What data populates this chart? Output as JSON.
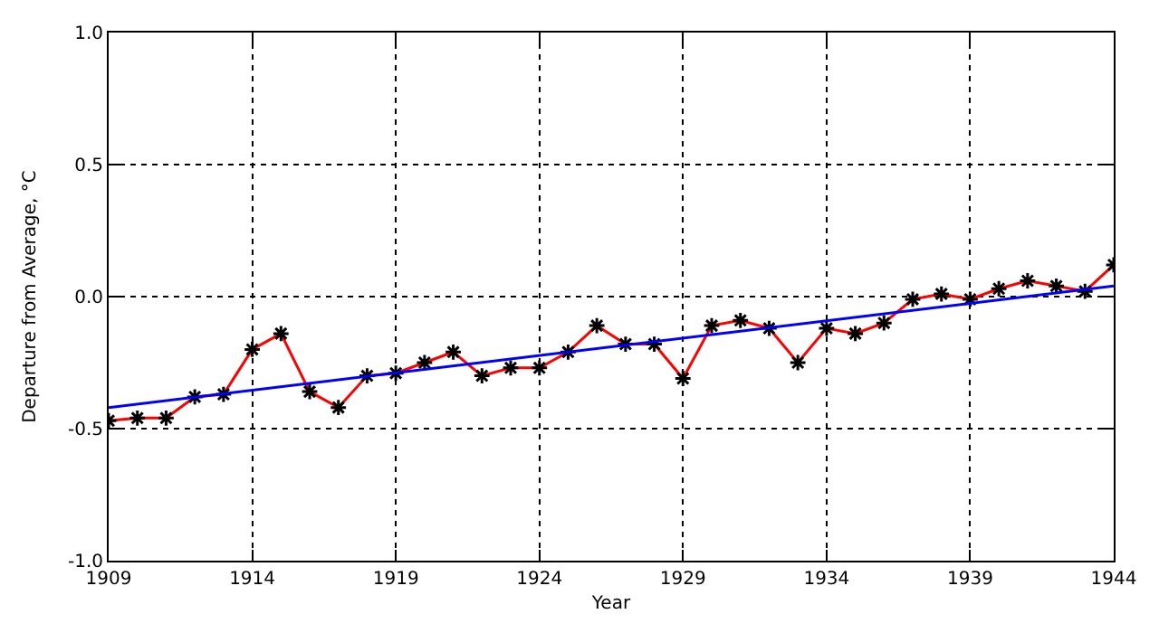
{
  "chart_data": {
    "type": "line",
    "xlabel": "Year",
    "ylabel": "Departure from Average, °C",
    "x": [
      1909,
      1910,
      1911,
      1912,
      1913,
      1914,
      1915,
      1916,
      1917,
      1918,
      1919,
      1920,
      1921,
      1922,
      1923,
      1924,
      1925,
      1926,
      1927,
      1928,
      1929,
      1930,
      1931,
      1932,
      1933,
      1934,
      1935,
      1936,
      1937,
      1938,
      1939,
      1940,
      1941,
      1942,
      1943,
      1944
    ],
    "series": [
      {
        "color": "#ff0000",
        "marker": "cross",
        "values": [
          -0.47,
          -0.46,
          -0.46,
          -0.38,
          -0.37,
          -0.2,
          -0.14,
          -0.36,
          -0.42,
          -0.3,
          -0.29,
          -0.25,
          -0.21,
          -0.3,
          -0.27,
          -0.27,
          -0.21,
          -0.11,
          -0.18,
          -0.18,
          -0.31,
          -0.11,
          -0.09,
          -0.12,
          -0.25,
          -0.12,
          -0.14,
          -0.1,
          -0.01,
          0.01,
          -0.01,
          0.03,
          0.06,
          0.04,
          0.02,
          0.12
        ]
      },
      {
        "color": "#0000ff",
        "marker": "none",
        "x": [
          1909,
          1944
        ],
        "values": [
          -0.42,
          0.04
        ]
      }
    ],
    "xlim": [
      1909,
      1944
    ],
    "xticks": [
      1909,
      1914,
      1919,
      1924,
      1929,
      1934,
      1939,
      1944
    ],
    "ylim": [
      -1.0,
      1.0
    ],
    "yticks": [
      {
        "value": -1.0,
        "label": "-1.0"
      },
      {
        "value": -0.5,
        "label": "-0.5"
      },
      {
        "value": 0,
        "label": "0.0"
      },
      {
        "value": 0.5,
        "label": "0.5"
      },
      {
        "value": 1.0,
        "label": "1.0"
      }
    ],
    "grid": true,
    "line_style": "solid"
  }
}
